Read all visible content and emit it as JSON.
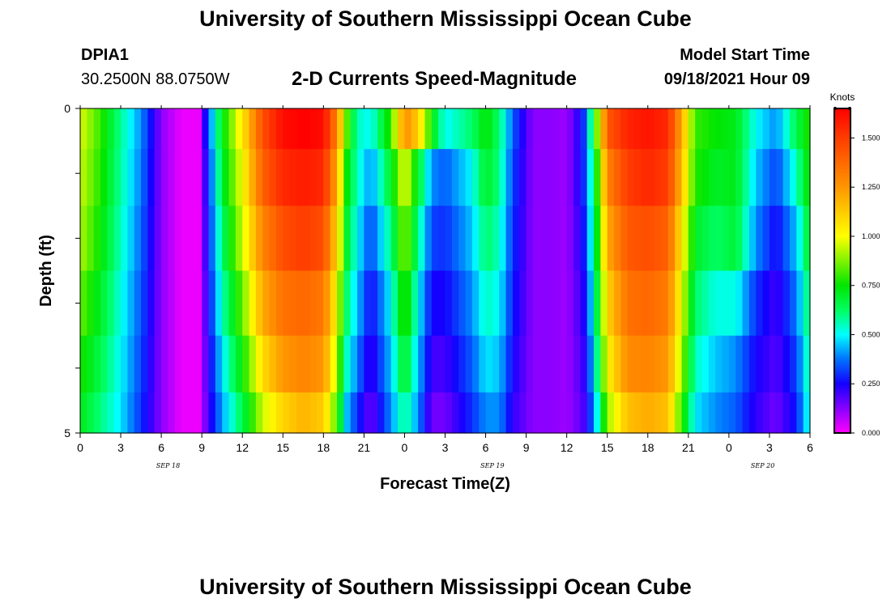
{
  "header": {
    "title": "University of Southern Mississippi Ocean Cube",
    "station_id": "DPIA1",
    "coordinates": "30.2500N  88.0750W",
    "chart_title": "2-D Currents Speed-Magnitude",
    "model_label": "Model Start Time",
    "model_time": "09/18/2021 Hour 09"
  },
  "footer": {
    "title": "University of Southern Mississippi Ocean Cube"
  },
  "chart_data": {
    "type": "heatmap",
    "title": "2-D Currents Speed-Magnitude",
    "xlabel": "Forecast Time(Z)",
    "ylabel": "Depth (ft)",
    "x_ticks": [
      "0",
      "3",
      "6",
      "9",
      "12",
      "15",
      "18",
      "21",
      "0",
      "3",
      "6",
      "9",
      "12",
      "15",
      "18",
      "21",
      "0",
      "3",
      "6"
    ],
    "date_labels": [
      "SEP 18",
      "SEP 19",
      "SEP 20"
    ],
    "y_ticks": [
      "0",
      "5"
    ],
    "ylim": [
      0,
      5
    ],
    "xlim_hours": [
      0,
      54
    ],
    "colorbar": {
      "unit": "Knots",
      "min": 0.0,
      "max": 1.65,
      "labels": [
        "0.000",
        "0.250",
        "0.500",
        "0.750",
        "1.000",
        "1.250",
        "1.500"
      ],
      "values": [
        0.0,
        0.25,
        0.5,
        0.75,
        1.0,
        1.25,
        1.5
      ]
    },
    "depth_layers": [
      0.25,
      1.0,
      2.0,
      3.0,
      4.0,
      4.75
    ],
    "time_keypoints_hours": [
      0,
      1.5,
      3,
      4.5,
      6,
      7.5,
      8.75,
      9.5,
      10.5,
      12,
      13.5,
      15,
      16.5,
      18,
      19,
      19.7,
      20.5,
      21.5,
      23,
      24,
      25,
      26,
      27,
      29,
      30,
      31,
      32,
      33.5,
      35,
      36,
      37.2,
      38,
      39,
      40.5,
      42,
      43.5,
      44.5,
      45.5,
      47,
      48.5,
      50,
      51.5,
      53,
      54
    ],
    "speed_knots": [
      [
        0.97,
        0.8,
        0.58,
        0.4,
        0.12,
        0.02,
        0.02,
        0.35,
        0.72,
        1.05,
        1.45,
        1.62,
        1.65,
        1.62,
        1.3,
        0.85,
        0.55,
        0.5,
        0.8,
        1.28,
        1.12,
        0.75,
        0.5,
        0.62,
        0.75,
        0.62,
        0.35,
        0.12,
        0.12,
        0.1,
        0.28,
        0.7,
        1.42,
        1.56,
        1.6,
        1.55,
        1.2,
        0.8,
        0.75,
        0.72,
        0.5,
        0.4,
        0.65,
        0.8
      ],
      [
        0.95,
        0.78,
        0.57,
        0.38,
        0.12,
        0.02,
        0.02,
        0.3,
        0.68,
        1.0,
        1.4,
        1.55,
        1.58,
        1.55,
        1.2,
        0.75,
        0.55,
        0.4,
        0.7,
        1.0,
        0.7,
        0.4,
        0.35,
        0.5,
        0.7,
        0.6,
        0.32,
        0.12,
        0.12,
        0.1,
        0.28,
        0.62,
        1.3,
        1.5,
        1.55,
        1.5,
        1.15,
        0.78,
        0.7,
        0.72,
        0.45,
        0.32,
        0.55,
        0.78
      ],
      [
        0.92,
        0.75,
        0.55,
        0.36,
        0.12,
        0.02,
        0.02,
        0.28,
        0.62,
        0.95,
        1.3,
        1.45,
        1.5,
        1.45,
        1.1,
        0.7,
        0.5,
        0.32,
        0.6,
        0.9,
        0.6,
        0.32,
        0.3,
        0.45,
        0.62,
        0.55,
        0.3,
        0.12,
        0.12,
        0.1,
        0.25,
        0.58,
        1.2,
        1.42,
        1.45,
        1.4,
        1.05,
        0.7,
        0.62,
        0.68,
        0.4,
        0.25,
        0.45,
        0.72
      ],
      [
        0.85,
        0.7,
        0.52,
        0.34,
        0.12,
        0.02,
        0.02,
        0.25,
        0.55,
        0.85,
        1.2,
        1.35,
        1.38,
        1.33,
        1.0,
        0.62,
        0.45,
        0.25,
        0.5,
        0.82,
        0.5,
        0.25,
        0.25,
        0.4,
        0.55,
        0.5,
        0.28,
        0.12,
        0.12,
        0.1,
        0.22,
        0.52,
        1.1,
        1.35,
        1.38,
        1.32,
        0.98,
        0.62,
        0.52,
        0.52,
        0.3,
        0.2,
        0.38,
        0.65
      ],
      [
        0.78,
        0.65,
        0.5,
        0.32,
        0.12,
        0.02,
        0.02,
        0.22,
        0.48,
        0.75,
        1.08,
        1.25,
        1.3,
        1.25,
        0.92,
        0.55,
        0.38,
        0.2,
        0.45,
        0.72,
        0.45,
        0.2,
        0.2,
        0.35,
        0.48,
        0.45,
        0.25,
        0.12,
        0.12,
        0.1,
        0.2,
        0.45,
        1.02,
        1.28,
        1.3,
        1.25,
        0.9,
        0.55,
        0.45,
        0.4,
        0.25,
        0.18,
        0.32,
        0.6
      ],
      [
        0.72,
        0.6,
        0.48,
        0.3,
        0.12,
        0.02,
        0.02,
        0.2,
        0.42,
        0.65,
        0.95,
        1.1,
        1.18,
        1.12,
        0.82,
        0.45,
        0.3,
        0.15,
        0.4,
        0.6,
        0.4,
        0.15,
        0.15,
        0.3,
        0.4,
        0.4,
        0.22,
        0.12,
        0.12,
        0.1,
        0.18,
        0.38,
        0.9,
        1.15,
        1.2,
        1.15,
        0.8,
        0.48,
        0.4,
        0.35,
        0.22,
        0.15,
        0.28,
        0.55
      ]
    ]
  }
}
